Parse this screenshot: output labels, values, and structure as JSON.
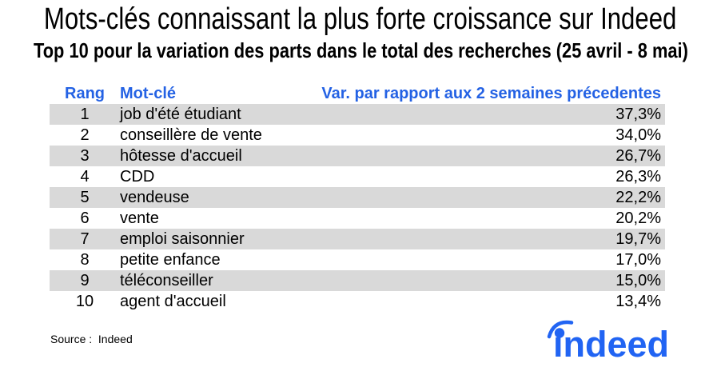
{
  "title": "Mots-clés connaissant la plus forte croissance sur Indeed",
  "subtitle": "Top 10 pour la variation des parts dans le total des recherches (25 avril - 8 mai)",
  "table": {
    "headers": {
      "rank": "Rang",
      "keyword": "Mot-clé",
      "variation": "Var. par rapport aux 2 semaines précedentes"
    },
    "rows": [
      {
        "rank": "1",
        "keyword": "job d'été étudiant",
        "variation": "37,3%"
      },
      {
        "rank": "2",
        "keyword": "conseillère de vente",
        "variation": "34,0%"
      },
      {
        "rank": "3",
        "keyword": "hôtesse d'accueil",
        "variation": "26,7%"
      },
      {
        "rank": "4",
        "keyword": "CDD",
        "variation": "26,3%"
      },
      {
        "rank": "5",
        "keyword": "vendeuse",
        "variation": "22,2%"
      },
      {
        "rank": "6",
        "keyword": "vente",
        "variation": "20,2%"
      },
      {
        "rank": "7",
        "keyword": "emploi saisonnier",
        "variation": "19,7%"
      },
      {
        "rank": "8",
        "keyword": "petite enfance",
        "variation": "17,0%"
      },
      {
        "rank": "9",
        "keyword": "téléconseiller",
        "variation": "15,0%"
      },
      {
        "rank": "10",
        "keyword": "agent d'accueil",
        "variation": "13,4%"
      }
    ]
  },
  "footer": {
    "source_label": "Source :  Indeed"
  },
  "logo": {
    "text": "indeed",
    "icon": "indeed-logo-arc-icon"
  },
  "colors": {
    "header_blue": "#2462e4",
    "logo_blue": "#2164f3",
    "row_alt_gray": "#d9d9d9",
    "text_black": "#000000",
    "background": "#ffffff"
  },
  "chart_data": {
    "type": "table",
    "title": "Mots-clés connaissant la plus forte croissance sur Indeed",
    "subtitle": "Top 10 pour la variation des parts dans le total des recherches (25 avril - 8 mai)",
    "columns": [
      "Rang",
      "Mot-clé",
      "Var. par rapport aux 2 semaines précedentes"
    ],
    "keywords": [
      "job d'été étudiant",
      "conseillère de vente",
      "hôtesse d'accueil",
      "CDD",
      "vendeuse",
      "vente",
      "emploi saisonnier",
      "petite enfance",
      "téléconseiller",
      "agent d'accueil"
    ],
    "variation_percent": [
      37.3,
      34.0,
      26.7,
      26.3,
      22.2,
      20.2,
      19.7,
      17.0,
      15.0,
      13.4
    ],
    "value_format": "french decimal comma, e.g. 37,3%",
    "source": "Indeed",
    "layout": "alternating gray/white rows, values right-aligned, headers blue bold"
  }
}
